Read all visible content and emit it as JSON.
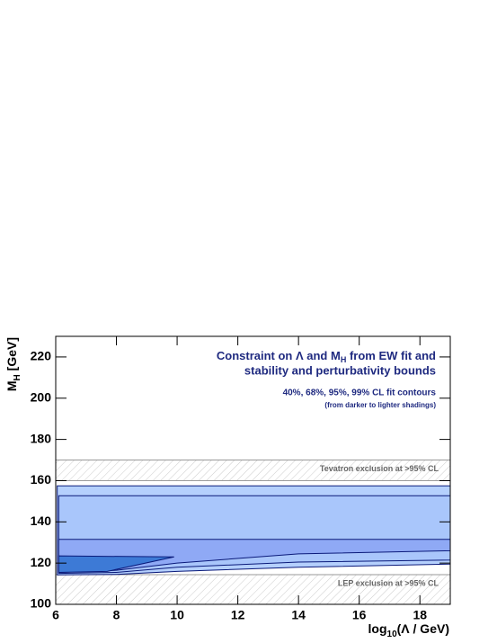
{
  "chart_data": {
    "type": "contour",
    "title": {
      "line1_before": "Constraint on Λ and M",
      "line1_sub": "H",
      "line1_after": " from EW fit and",
      "line2": "stability and perturbativity bounds"
    },
    "subtitle": "40%, 68%, 95%, 99% CL fit contours",
    "note": "(from darker to lighter shadings)",
    "x_label": {
      "before": "log",
      "sub": "10",
      "after": "(Λ / GeV)"
    },
    "y_label": {
      "before": "M",
      "sub": "H",
      "after": " [GeV]"
    },
    "xlim": [
      6,
      19
    ],
    "ylim": [
      100,
      230
    ],
    "xticks": [
      6,
      8,
      10,
      12,
      14,
      16,
      18
    ],
    "yticks": [
      100,
      120,
      140,
      160,
      180,
      200,
      220
    ],
    "bands": [
      {
        "label": "Tevatron exclusion at >95% CL",
        "range": [
          160,
          170
        ]
      },
      {
        "label": "LEP exclusion at >95% CL",
        "range": [
          100,
          114.4
        ]
      }
    ],
    "series": [
      {
        "color": "#b5d0fd",
        "x": [
          6.05,
          8,
          10,
          14,
          19,
          19,
          6.05
        ],
        "y": [
          114.3,
          114.5,
          116,
          118,
          119.5,
          157.5,
          157.5
        ]
      },
      {
        "color": "#a9c6fb",
        "x": [
          6.1,
          8,
          10,
          14,
          19,
          19,
          6.1
        ],
        "y": [
          115,
          115.5,
          118,
          120.5,
          121.5,
          152.7,
          152.7
        ]
      },
      {
        "color": "#8fa9f5",
        "x": [
          6.1,
          8,
          10,
          14,
          19,
          19,
          6.1
        ],
        "y": [
          115.5,
          116.5,
          120,
          124.5,
          126,
          131.5,
          131.5
        ]
      },
      {
        "color": "#3d7ad6",
        "x": [
          6.1,
          7.7,
          9.9,
          6.1
        ],
        "y": [
          115.5,
          116,
          123,
          123.5
        ]
      }
    ]
  }
}
